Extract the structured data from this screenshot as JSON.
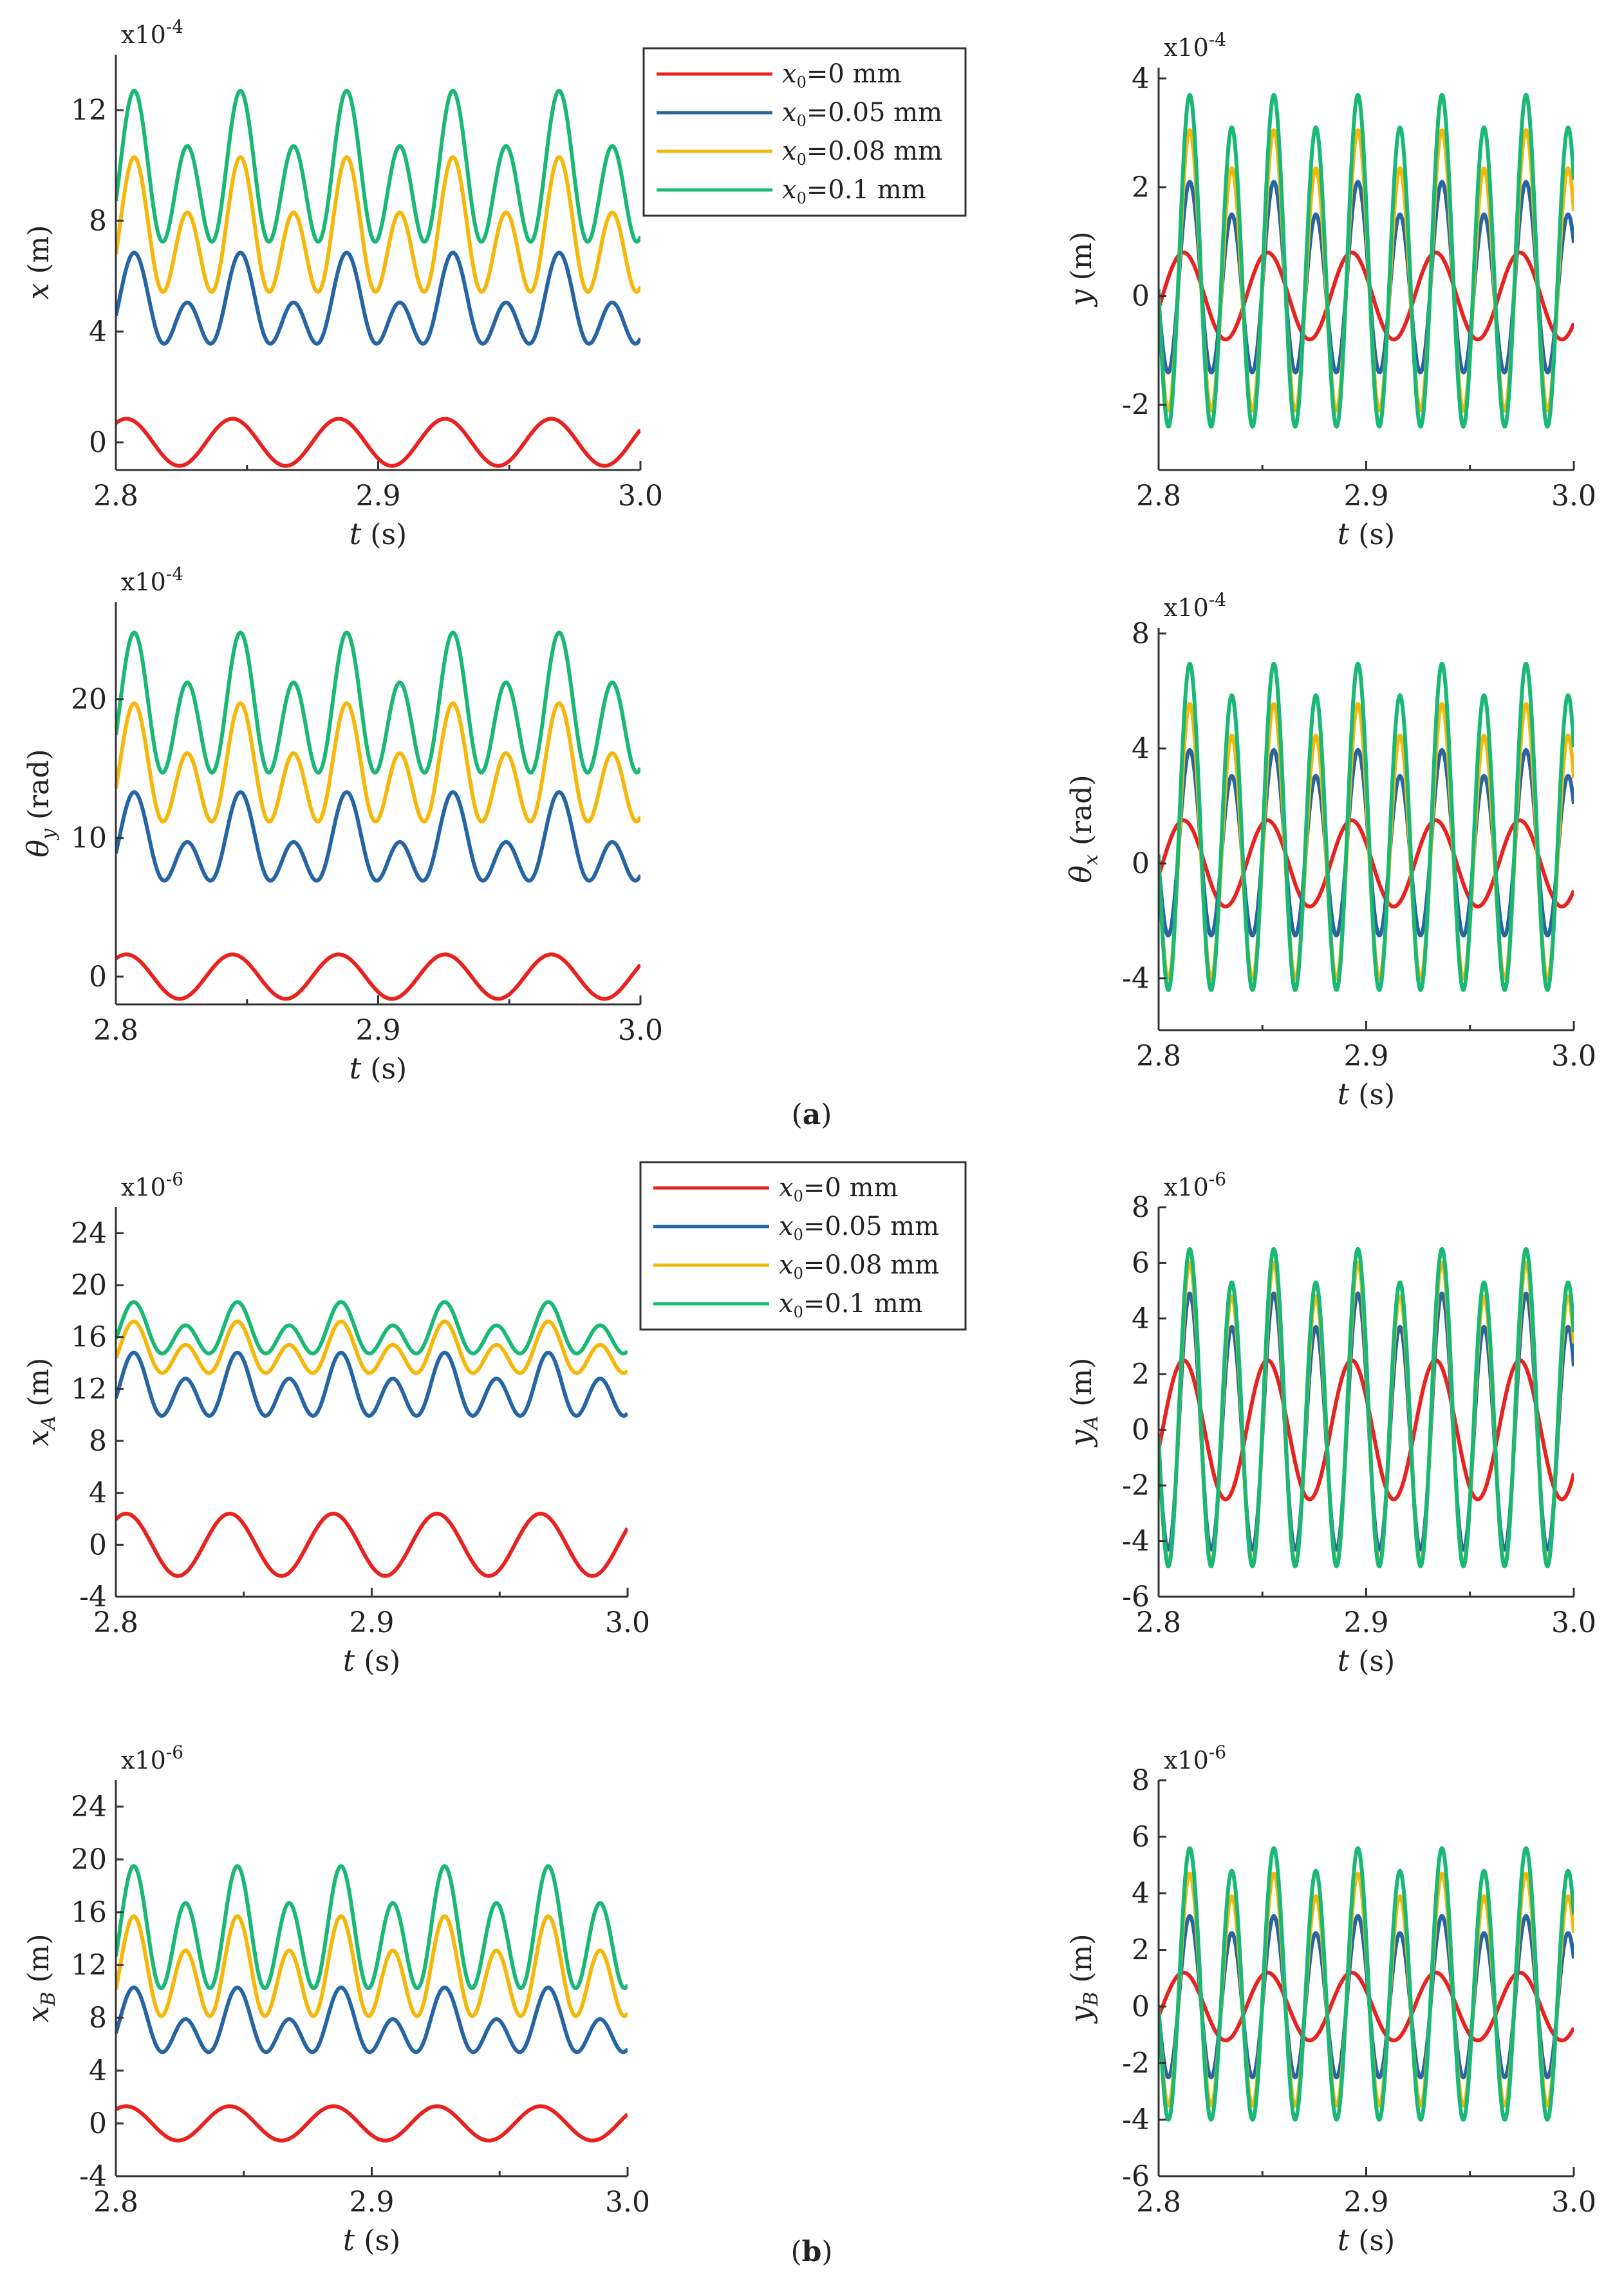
{
  "figure": {
    "captions": [
      {
        "open": "(",
        "letter": "a",
        "close": ")"
      },
      {
        "open": "(",
        "letter": "b",
        "close": ")"
      }
    ],
    "legend": {
      "prefix": "x",
      "subscript": "0",
      "entries": [
        {
          "label": "=0 mm",
          "color": "#e8231f"
        },
        {
          "label": "=0.05 mm",
          "color": "#2565a3"
        },
        {
          "label": "=0.08 mm",
          "color": "#f5b70a"
        },
        {
          "label": "=0.1 mm",
          "color": "#19b975"
        }
      ]
    }
  },
  "chart_data": [
    {
      "type": "line",
      "id": "a-x",
      "ylabel_main": "x",
      "ylabel_sub": "",
      "ylabel_unit": " (m)",
      "xlabel_main": "t",
      "xlabel_unit": " (s)",
      "multiplier": "x10-4",
      "xlim": [
        2.8,
        3.0
      ],
      "ylim": [
        -1,
        14
      ],
      "xticks": [
        "2.8",
        "2.9",
        "3.0"
      ],
      "yticks": [
        "0",
        "4",
        "8",
        "12"
      ],
      "show_legend": true,
      "series": [
        {
          "name": "x0=0 mm",
          "color": "#e8231f",
          "mean": 0,
          "a1": 0.85,
          "a2": 0,
          "period": 0.0405,
          "phase": 0.004
        },
        {
          "name": "x0=0.05 mm",
          "color": "#2565a3",
          "mean": 4.8,
          "a1": 0.9,
          "a2": 1.15,
          "period": 0.0405,
          "phase": 0.007
        },
        {
          "name": "x0=0.08 mm",
          "color": "#f5b70a",
          "mean": 7.4,
          "a1": 1.0,
          "a2": 1.9,
          "period": 0.0405,
          "phase": 0.007
        },
        {
          "name": "x0=0.1 mm",
          "color": "#19b975",
          "mean": 9.5,
          "a1": 1.0,
          "a2": 2.2,
          "period": 0.0405,
          "phase": 0.007
        }
      ]
    },
    {
      "type": "line",
      "id": "a-y",
      "ylabel_main": "y",
      "ylabel_sub": "",
      "ylabel_unit": " (m)",
      "xlabel_main": "t",
      "xlabel_unit": " (s)",
      "multiplier": "x10-4",
      "xlim": [
        2.8,
        3.0
      ],
      "ylim": [
        -3.2,
        4.2
      ],
      "xticks": [
        "2.8",
        "2.9",
        "3.0"
      ],
      "yticks": [
        "-2",
        "0",
        "2",
        "4"
      ],
      "show_legend": false,
      "series": [
        {
          "name": "x0=0 mm",
          "color": "#e8231f",
          "mean": 0,
          "a1": 0.8,
          "a2": 0,
          "period": 0.0405,
          "phase": 0.012
        },
        {
          "name": "x0=0.05 mm",
          "color": "#2565a3",
          "mean": 0.2,
          "a1": 0.3,
          "a2": 1.6,
          "period": 0.0405,
          "phase": 0.015
        },
        {
          "name": "x0=0.08 mm",
          "color": "#f5b70a",
          "mean": 0.3,
          "a1": 0.35,
          "a2": 2.4,
          "period": 0.0405,
          "phase": 0.015
        },
        {
          "name": "x0=0.1 mm",
          "color": "#19b975",
          "mean": 0.5,
          "a1": 0.3,
          "a2": 2.9,
          "period": 0.0405,
          "phase": 0.015
        }
      ]
    },
    {
      "type": "line",
      "id": "a-thetay",
      "ylabel_main": "θ",
      "ylabel_sub": "y",
      "ylabel_unit": " (rad)",
      "xlabel_main": "t",
      "xlabel_unit": " (s)",
      "multiplier": "x10-4",
      "xlim": [
        2.8,
        3.0
      ],
      "ylim": [
        -2,
        27
      ],
      "xticks": [
        "2.8",
        "2.9",
        "3.0"
      ],
      "yticks": [
        "0",
        "10",
        "20"
      ],
      "show_legend": false,
      "series": [
        {
          "name": "x0=0 mm",
          "color": "#e8231f",
          "mean": 0,
          "a1": 1.6,
          "a2": 0,
          "period": 0.0405,
          "phase": 0.004
        },
        {
          "name": "x0=0.05 mm",
          "color": "#2565a3",
          "mean": 9.3,
          "a1": 1.8,
          "a2": 2.2,
          "period": 0.0405,
          "phase": 0.007
        },
        {
          "name": "x0=0.08 mm",
          "color": "#f5b70a",
          "mean": 14.6,
          "a1": 1.8,
          "a2": 3.3,
          "period": 0.0405,
          "phase": 0.007
        },
        {
          "name": "x0=0.1 mm",
          "color": "#19b975",
          "mean": 18.9,
          "a1": 1.8,
          "a2": 4.1,
          "period": 0.0405,
          "phase": 0.007
        }
      ]
    },
    {
      "type": "line",
      "id": "a-thetax",
      "ylabel_main": "θ",
      "ylabel_sub": "x",
      "ylabel_unit": " (rad)",
      "xlabel_main": "t",
      "xlabel_unit": " (s)",
      "multiplier": "x10-4",
      "xlim": [
        2.8,
        3.0
      ],
      "ylim": [
        -5.8,
        8.2
      ],
      "xticks": [
        "2.8",
        "2.9",
        "3.0"
      ],
      "yticks": [
        "-4",
        "0",
        "4",
        "8"
      ],
      "show_legend": false,
      "series": [
        {
          "name": "x0=0 mm",
          "color": "#e8231f",
          "mean": 0,
          "a1": 1.5,
          "a2": 0,
          "period": 0.0405,
          "phase": 0.012
        },
        {
          "name": "x0=0.05 mm",
          "color": "#2565a3",
          "mean": 0.5,
          "a1": 0.45,
          "a2": 3.0,
          "period": 0.0405,
          "phase": 0.015
        },
        {
          "name": "x0=0.08 mm",
          "color": "#f5b70a",
          "mean": 0.5,
          "a1": 0.55,
          "a2": 4.5,
          "period": 0.0405,
          "phase": 0.015
        },
        {
          "name": "x0=0.1 mm",
          "color": "#19b975",
          "mean": 1.0,
          "a1": 0.55,
          "a2": 5.4,
          "period": 0.0405,
          "phase": 0.015
        }
      ]
    },
    {
      "type": "line",
      "id": "b-xA",
      "ylabel_main": "x",
      "ylabel_sub": "A",
      "ylabel_unit": " (m)",
      "xlabel_main": "t",
      "xlabel_unit": " (s)",
      "multiplier": "x10-6",
      "xlim": [
        2.8,
        3.0
      ],
      "ylim": [
        -4,
        26
      ],
      "xticks": [
        "2.8",
        "2.9",
        "3.0"
      ],
      "yticks": [
        "-4",
        "0",
        "4",
        "8",
        "12",
        "16",
        "20",
        "24"
      ],
      "show_legend": true,
      "series": [
        {
          "name": "x0=0 mm",
          "color": "#e8231f",
          "mean": 0,
          "a1": 2.4,
          "a2": 0,
          "period": 0.0405,
          "phase": 0.004
        },
        {
          "name": "x0=0.05 mm",
          "color": "#2565a3",
          "mean": 11.9,
          "a1": 1.0,
          "a2": 1.9,
          "period": 0.0405,
          "phase": 0.007
        },
        {
          "name": "x0=0.08 mm",
          "color": "#f5b70a",
          "mean": 14.8,
          "a1": 0.9,
          "a2": 1.5,
          "period": 0.0405,
          "phase": 0.007
        },
        {
          "name": "x0=0.1 mm",
          "color": "#19b975",
          "mean": 16.3,
          "a1": 0.9,
          "a2": 1.5,
          "period": 0.0405,
          "phase": 0.007
        }
      ]
    },
    {
      "type": "line",
      "id": "b-yA",
      "ylabel_main": "y",
      "ylabel_sub": "A",
      "ylabel_unit": " (m)",
      "xlabel_main": "t",
      "xlabel_unit": " (s)",
      "multiplier": "x10-6",
      "xlim": [
        2.8,
        3.0
      ],
      "ylim": [
        -6,
        8
      ],
      "xticks": [
        "2.8",
        "2.9",
        "3.0"
      ],
      "yticks": [
        "-6",
        "-4",
        "-2",
        "0",
        "2",
        "4",
        "6",
        "8"
      ],
      "show_legend": false,
      "series": [
        {
          "name": "x0=0 mm",
          "color": "#e8231f",
          "mean": 0,
          "a1": 2.5,
          "a2": 0,
          "period": 0.0405,
          "phase": 0.012
        },
        {
          "name": "x0=0.05 mm",
          "color": "#2565a3",
          "mean": 0,
          "a1": 0.6,
          "a2": 4.3,
          "period": 0.0405,
          "phase": 0.015
        },
        {
          "name": "x0=0.08 mm",
          "color": "#f5b70a",
          "mean": 0.3,
          "a1": 0.6,
          "a2": 5.1,
          "period": 0.0405,
          "phase": 0.015
        },
        {
          "name": "x0=0.1 mm",
          "color": "#19b975",
          "mean": 0.5,
          "a1": 0.6,
          "a2": 5.4,
          "period": 0.0405,
          "phase": 0.015
        }
      ]
    },
    {
      "type": "line",
      "id": "b-xB",
      "ylabel_main": "x",
      "ylabel_sub": "B",
      "ylabel_unit": " (m)",
      "xlabel_main": "t",
      "xlabel_unit": " (s)",
      "multiplier": "x10-6",
      "xlim": [
        2.8,
        3.0
      ],
      "ylim": [
        -4,
        26
      ],
      "xticks": [
        "2.8",
        "2.9",
        "3.0"
      ],
      "yticks": [
        "-4",
        "0",
        "4",
        "8",
        "12",
        "16",
        "20",
        "24"
      ],
      "show_legend": false,
      "series": [
        {
          "name": "x0=0 mm",
          "color": "#e8231f",
          "mean": 0,
          "a1": 1.3,
          "a2": 0,
          "period": 0.0405,
          "phase": 0.004
        },
        {
          "name": "x0=0.05 mm",
          "color": "#2565a3",
          "mean": 7.3,
          "a1": 1.2,
          "a2": 1.8,
          "period": 0.0405,
          "phase": 0.007
        },
        {
          "name": "x0=0.08 mm",
          "color": "#f5b70a",
          "mean": 11.3,
          "a1": 1.3,
          "a2": 3.1,
          "period": 0.0405,
          "phase": 0.007
        },
        {
          "name": "x0=0.1 mm",
          "color": "#19b975",
          "mean": 14.2,
          "a1": 1.4,
          "a2": 3.9,
          "period": 0.0405,
          "phase": 0.007
        }
      ]
    },
    {
      "type": "line",
      "id": "b-yB",
      "ylabel_main": "y",
      "ylabel_sub": "B",
      "ylabel_unit": " (m)",
      "xlabel_main": "t",
      "xlabel_unit": " (s)",
      "multiplier": "x10-6",
      "xlim": [
        2.8,
        3.0
      ],
      "ylim": [
        -6,
        8
      ],
      "xticks": [
        "2.8",
        "2.9",
        "3.0"
      ],
      "yticks": [
        "-6",
        "-4",
        "-2",
        "0",
        "2",
        "4",
        "6",
        "8"
      ],
      "show_legend": false,
      "series": [
        {
          "name": "x0=0 mm",
          "color": "#e8231f",
          "mean": 0,
          "a1": 1.2,
          "a2": 0,
          "period": 0.0405,
          "phase": 0.012
        },
        {
          "name": "x0=0.05 mm",
          "color": "#2565a3",
          "mean": 0.2,
          "a1": 0.3,
          "a2": 2.7,
          "period": 0.0405,
          "phase": 0.015
        },
        {
          "name": "x0=0.08 mm",
          "color": "#f5b70a",
          "mean": 0.4,
          "a1": 0.4,
          "a2": 3.9,
          "period": 0.0405,
          "phase": 0.015
        },
        {
          "name": "x0=0.1 mm",
          "color": "#19b975",
          "mean": 0.6,
          "a1": 0.4,
          "a2": 4.6,
          "period": 0.0405,
          "phase": 0.015
        }
      ]
    }
  ]
}
